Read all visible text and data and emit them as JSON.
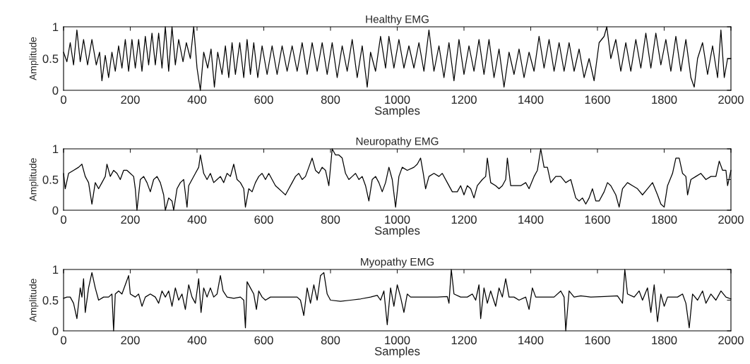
{
  "chart_data": [
    {
      "type": "line",
      "title": "Healthy EMG",
      "xlabel": "Samples",
      "ylabel": "Amplitude",
      "color": "#000000",
      "xlim": [
        0,
        2000
      ],
      "ylim": [
        0,
        1
      ],
      "xticks": [
        0,
        200,
        400,
        600,
        800,
        1000,
        1200,
        1400,
        1600,
        1800,
        2000
      ],
      "yticks": [
        0,
        0.5,
        1
      ],
      "x": [
        0,
        10,
        20,
        30,
        40,
        50,
        60,
        72,
        85,
        98,
        108,
        115,
        125,
        135,
        145,
        155,
        165,
        175,
        185,
        195,
        205,
        215,
        225,
        235,
        245,
        255,
        265,
        275,
        285,
        295,
        305,
        315,
        325,
        335,
        345,
        358,
        368,
        380,
        390,
        400,
        410,
        420,
        432,
        442,
        452,
        462,
        475,
        485,
        495,
        505,
        515,
        528,
        540,
        550,
        560,
        570,
        582,
        595,
        610,
        625,
        640,
        655,
        670,
        685,
        700,
        715,
        730,
        745,
        760,
        775,
        790,
        805,
        820,
        835,
        850,
        865,
        880,
        895,
        910,
        920,
        935,
        950,
        965,
        975,
        990,
        1005,
        1020,
        1035,
        1050,
        1065,
        1080,
        1095,
        1110,
        1125,
        1140,
        1155,
        1170,
        1185,
        1200,
        1215,
        1230,
        1245,
        1260,
        1275,
        1290,
        1305,
        1320,
        1335,
        1350,
        1365,
        1380,
        1395,
        1410,
        1425,
        1440,
        1455,
        1470,
        1485,
        1500,
        1515,
        1530,
        1545,
        1560,
        1575,
        1590,
        1605,
        1620,
        1628,
        1640,
        1655,
        1670,
        1685,
        1700,
        1715,
        1730,
        1745,
        1760,
        1775,
        1790,
        1805,
        1820,
        1835,
        1850,
        1865,
        1880,
        1890,
        1900,
        1915,
        1930,
        1945,
        1960,
        1970,
        1980,
        1990,
        2000
      ],
      "values": [
        0.6,
        0.45,
        0.75,
        0.4,
        0.95,
        0.45,
        0.8,
        0.4,
        0.8,
        0.4,
        0.6,
        0.15,
        0.55,
        0.2,
        0.6,
        0.3,
        0.7,
        0.35,
        0.8,
        0.3,
        0.8,
        0.35,
        0.8,
        0.3,
        0.85,
        0.4,
        0.9,
        0.4,
        0.9,
        0.35,
        1.0,
        0.3,
        1.0,
        0.4,
        0.8,
        0.45,
        0.75,
        0.5,
        1.0,
        0.35,
        0.0,
        0.6,
        0.35,
        0.65,
        0.05,
        0.6,
        0.25,
        0.7,
        0.2,
        0.75,
        0.25,
        0.75,
        0.2,
        0.8,
        0.25,
        0.75,
        0.2,
        0.7,
        0.25,
        0.7,
        0.25,
        0.7,
        0.3,
        0.7,
        0.3,
        0.75,
        0.25,
        0.75,
        0.3,
        0.75,
        0.25,
        0.75,
        0.2,
        0.7,
        0.3,
        0.8,
        0.2,
        0.7,
        0.05,
        0.6,
        0.3,
        0.85,
        0.35,
        0.85,
        0.35,
        0.8,
        0.35,
        0.7,
        0.35,
        0.75,
        0.3,
        0.95,
        0.3,
        0.7,
        0.2,
        0.75,
        0.15,
        0.8,
        0.25,
        0.7,
        0.3,
        0.8,
        0.25,
        0.8,
        0.2,
        0.65,
        0.05,
        0.6,
        0.25,
        0.65,
        0.2,
        0.6,
        0.3,
        0.85,
        0.35,
        0.8,
        0.3,
        0.75,
        0.3,
        0.75,
        0.3,
        0.65,
        0.2,
        0.5,
        0.15,
        0.75,
        0.85,
        1.0,
        0.5,
        0.8,
        0.3,
        0.75,
        0.3,
        0.8,
        0.35,
        0.9,
        0.35,
        0.9,
        0.4,
        0.8,
        0.3,
        0.85,
        0.3,
        0.8,
        0.2,
        0.05,
        0.5,
        0.75,
        0.25,
        0.7,
        0.2,
        0.95,
        0.2,
        0.5,
        0.5
      ]
    },
    {
      "type": "line",
      "title": "Neuropathy EMG",
      "xlabel": "Samples",
      "ylabel": "Amplitude",
      "color": "#000000",
      "xlim": [
        0,
        2000
      ],
      "ylim": [
        0,
        1
      ],
      "xticks": [
        0,
        200,
        400,
        600,
        800,
        1000,
        1200,
        1400,
        1600,
        1800,
        2000
      ],
      "yticks": [
        0,
        0.5,
        1
      ],
      "x": [
        0,
        5,
        15,
        30,
        45,
        55,
        65,
        75,
        85,
        95,
        105,
        115,
        125,
        130,
        140,
        150,
        160,
        170,
        180,
        190,
        200,
        210,
        215,
        220,
        230,
        240,
        250,
        260,
        270,
        280,
        290,
        300,
        305,
        315,
        325,
        330,
        340,
        350,
        360,
        370,
        375,
        385,
        395,
        405,
        410,
        420,
        430,
        440,
        450,
        460,
        470,
        480,
        490,
        500,
        510,
        520,
        530,
        540,
        545,
        555,
        565,
        575,
        585,
        595,
        605,
        615,
        625,
        635,
        645,
        655,
        665,
        675,
        685,
        695,
        705,
        715,
        725,
        735,
        745,
        755,
        765,
        775,
        785,
        795,
        805,
        815,
        825,
        835,
        845,
        855,
        865,
        875,
        885,
        895,
        905,
        915,
        925,
        935,
        945,
        955,
        965,
        975,
        985,
        995,
        1005,
        1015,
        1030,
        1050,
        1060,
        1070,
        1078,
        1085,
        1095,
        1110,
        1125,
        1135,
        1150,
        1165,
        1180,
        1190,
        1200,
        1210,
        1220,
        1230,
        1240,
        1255,
        1265,
        1270,
        1280,
        1295,
        1305,
        1315,
        1325,
        1330,
        1340,
        1355,
        1370,
        1385,
        1395,
        1410,
        1420,
        1430,
        1440,
        1450,
        1460,
        1475,
        1490,
        1505,
        1520,
        1535,
        1545,
        1555,
        1565,
        1575,
        1585,
        1595,
        1605,
        1620,
        1630,
        1640,
        1655,
        1665,
        1675,
        1690,
        1705,
        1720,
        1735,
        1750,
        1765,
        1780,
        1790,
        1800,
        1810,
        1825,
        1835,
        1845,
        1855,
        1865,
        1870,
        1880,
        1895,
        1910,
        1925,
        1940,
        1955,
        1965,
        1975,
        1985,
        1990,
        2000
      ],
      "values": [
        0.6,
        0.35,
        0.6,
        0.65,
        0.7,
        0.75,
        0.55,
        0.45,
        0.1,
        0.45,
        0.35,
        0.45,
        0.55,
        0.75,
        0.55,
        0.65,
        0.6,
        0.5,
        0.65,
        0.65,
        0.6,
        0.55,
        0.35,
        0.0,
        0.5,
        0.55,
        0.45,
        0.3,
        0.5,
        0.55,
        0.45,
        0.25,
        0.0,
        0.2,
        0.15,
        0.0,
        0.35,
        0.45,
        0.5,
        0.05,
        0.4,
        0.5,
        0.6,
        0.7,
        0.9,
        0.6,
        0.5,
        0.6,
        0.45,
        0.5,
        0.55,
        0.45,
        0.6,
        0.55,
        0.75,
        0.5,
        0.45,
        0.35,
        0.05,
        0.35,
        0.3,
        0.45,
        0.55,
        0.6,
        0.5,
        0.6,
        0.5,
        0.4,
        0.35,
        0.3,
        0.25,
        0.35,
        0.45,
        0.55,
        0.6,
        0.5,
        0.55,
        0.7,
        0.85,
        0.65,
        0.6,
        0.7,
        0.65,
        0.4,
        1.0,
        0.9,
        0.9,
        0.85,
        0.6,
        0.5,
        0.55,
        0.6,
        0.5,
        0.55,
        0.4,
        0.15,
        0.5,
        0.55,
        0.45,
        0.3,
        0.45,
        0.7,
        0.5,
        0.05,
        0.55,
        0.7,
        0.65,
        0.7,
        0.75,
        0.85,
        0.6,
        0.35,
        0.55,
        0.6,
        0.55,
        0.6,
        0.45,
        0.3,
        0.3,
        0.4,
        0.25,
        0.4,
        0.35,
        0.2,
        0.4,
        0.5,
        0.55,
        0.85,
        0.45,
        0.4,
        0.35,
        0.4,
        0.5,
        0.85,
        0.4,
        0.4,
        0.4,
        0.45,
        0.35,
        0.55,
        0.65,
        1.0,
        0.7,
        0.7,
        0.45,
        0.55,
        0.55,
        0.45,
        0.5,
        0.2,
        0.15,
        0.2,
        0.1,
        0.2,
        0.35,
        0.15,
        0.15,
        0.3,
        0.45,
        0.4,
        0.25,
        0.05,
        0.35,
        0.45,
        0.4,
        0.35,
        0.25,
        0.35,
        0.45,
        0.25,
        0.1,
        0.05,
        0.4,
        0.6,
        0.85,
        0.85,
        0.6,
        0.55,
        0.25,
        0.5,
        0.55,
        0.6,
        0.5,
        0.55,
        0.55,
        0.8,
        0.65,
        0.65,
        0.4,
        0.65
      ]
    },
    {
      "type": "line",
      "title": "Myopathy EMG",
      "xlabel": "Samples",
      "ylabel": "Amplitude",
      "color": "#000000",
      "xlim": [
        0,
        2000
      ],
      "ylim": [
        0,
        1
      ],
      "xticks": [
        0,
        200,
        400,
        600,
        800,
        1000,
        1200,
        1400,
        1600,
        1800,
        2000
      ],
      "yticks": [
        0,
        0.5,
        1
      ],
      "x": [
        0,
        10,
        20,
        30,
        40,
        50,
        55,
        60,
        65,
        75,
        85,
        95,
        105,
        120,
        135,
        145,
        150,
        155,
        165,
        175,
        185,
        195,
        200,
        215,
        225,
        235,
        245,
        260,
        275,
        285,
        295,
        305,
        315,
        325,
        335,
        345,
        355,
        365,
        375,
        385,
        395,
        405,
        412,
        420,
        430,
        440,
        450,
        460,
        470,
        478,
        490,
        510,
        530,
        540,
        545,
        550,
        560,
        570,
        578,
        585,
        595,
        605,
        620,
        640,
        660,
        680,
        700,
        710,
        720,
        730,
        740,
        750,
        760,
        770,
        780,
        790,
        800,
        830,
        860,
        890,
        920,
        940,
        950,
        960,
        970,
        980,
        990,
        1000,
        1010,
        1020,
        1030,
        1040,
        1060,
        1080,
        1100,
        1120,
        1150,
        1155,
        1162,
        1170,
        1190,
        1210,
        1225,
        1235,
        1245,
        1250,
        1260,
        1270,
        1280,
        1295,
        1305,
        1315,
        1325,
        1335,
        1350,
        1365,
        1385,
        1395,
        1405,
        1415,
        1440,
        1470,
        1490,
        1500,
        1505,
        1515,
        1530,
        1550,
        1580,
        1620,
        1660,
        1675,
        1682,
        1690,
        1710,
        1725,
        1735,
        1750,
        1760,
        1770,
        1780,
        1790,
        1800,
        1810,
        1840,
        1855,
        1865,
        1875,
        1885,
        1900,
        1915,
        1925,
        1940,
        1955,
        1970,
        1985,
        2000
      ],
      "values": [
        0.53,
        0.55,
        0.55,
        0.45,
        0.2,
        0.7,
        0.55,
        0.85,
        0.3,
        0.7,
        0.95,
        0.7,
        0.5,
        0.55,
        0.55,
        0.6,
        0.0,
        0.6,
        0.65,
        0.6,
        0.75,
        0.9,
        0.6,
        0.55,
        0.6,
        0.4,
        0.55,
        0.6,
        0.55,
        0.45,
        0.65,
        0.55,
        0.65,
        0.4,
        0.7,
        0.5,
        0.6,
        0.35,
        0.75,
        0.55,
        0.45,
        0.85,
        0.3,
        0.7,
        0.55,
        0.7,
        0.55,
        0.6,
        0.9,
        0.65,
        0.55,
        0.53,
        0.55,
        0.5,
        0.05,
        0.8,
        0.7,
        0.6,
        0.35,
        0.65,
        0.55,
        0.5,
        0.55,
        0.55,
        0.55,
        0.55,
        0.55,
        0.5,
        0.25,
        0.7,
        0.45,
        0.75,
        0.5,
        0.9,
        0.95,
        0.6,
        0.5,
        0.48,
        0.5,
        0.52,
        0.55,
        0.58,
        0.5,
        0.65,
        0.1,
        0.7,
        0.4,
        0.75,
        0.55,
        0.3,
        0.6,
        0.55,
        0.55,
        0.55,
        0.55,
        0.55,
        0.56,
        0.45,
        1.0,
        0.6,
        0.55,
        0.55,
        0.6,
        0.5,
        0.75,
        0.2,
        0.7,
        0.45,
        0.65,
        0.4,
        0.7,
        0.55,
        0.85,
        0.55,
        0.55,
        0.5,
        0.55,
        0.35,
        0.7,
        0.55,
        0.55,
        0.55,
        0.65,
        0.55,
        0.0,
        0.65,
        0.55,
        0.57,
        0.55,
        0.56,
        0.57,
        0.45,
        1.0,
        0.6,
        0.55,
        0.65,
        0.5,
        0.7,
        0.3,
        0.75,
        0.15,
        0.6,
        0.4,
        0.55,
        0.55,
        0.6,
        0.45,
        0.05,
        0.6,
        0.5,
        0.65,
        0.45,
        0.6,
        0.5,
        0.65,
        0.55,
        0.52
      ]
    }
  ]
}
